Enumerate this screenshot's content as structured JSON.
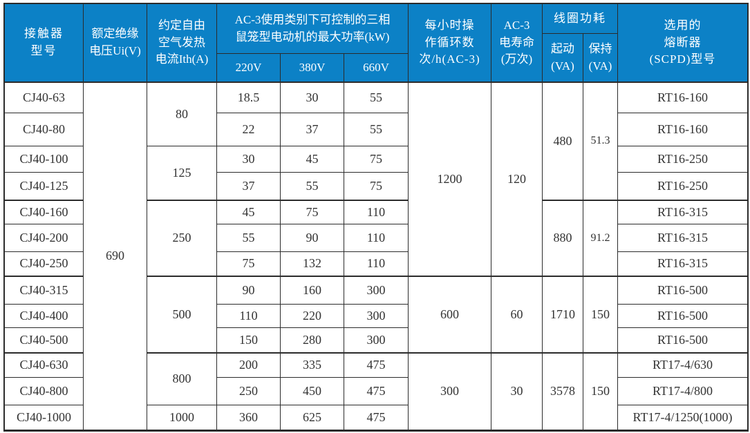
{
  "colors": {
    "header_bg": "#0c81c6",
    "header_text": "#ffffff",
    "border": "#2b2b2b",
    "body_text": "#333333"
  },
  "header": {
    "model": "接触器\n型号",
    "ui": "额定绝缘\n电压Ui(V)",
    "ith": "约定自由\n空气发热\n电流Ith(A)",
    "kw_title": "AC-3使用类别下可控制的三相\n鼠笼型电动机的最大功率(kW)",
    "v220": "220V",
    "v380": "380V",
    "v660": "660V",
    "cycles": "每小时操\n作循环数\n次/h(AC-3)",
    "life": "AC-3\n电寿命\n(万次)",
    "coil": "线圈功耗",
    "start": "起动\n(VA)",
    "hold": "保持\n(VA)",
    "fuse": "选用的\n熔断器\n(SCPD)型号"
  },
  "merged": {
    "ui": "690",
    "ith": [
      "80",
      "125",
      "250",
      "500",
      "800",
      "1000"
    ],
    "cycles": [
      "1200",
      "600",
      "300"
    ],
    "life": [
      "120",
      "60",
      "30"
    ],
    "start": [
      "480",
      "880",
      "1710",
      "3578"
    ],
    "hold": [
      "51.3",
      "91.2",
      "150",
      "150"
    ]
  },
  "rows": [
    {
      "model": "CJ40-63",
      "p220": "18.5",
      "p380": "30",
      "p660": "55",
      "fuse": "RT16-160"
    },
    {
      "model": "CJ40-80",
      "p220": "22",
      "p380": "37",
      "p660": "55",
      "fuse": "RT16-160"
    },
    {
      "model": "CJ40-100",
      "p220": "30",
      "p380": "45",
      "p660": "75",
      "fuse": "RT16-250"
    },
    {
      "model": "CJ40-125",
      "p220": "37",
      "p380": "55",
      "p660": "75",
      "fuse": "RT16-250"
    },
    {
      "model": "CJ40-160",
      "p220": "45",
      "p380": "75",
      "p660": "110",
      "fuse": "RT16-315"
    },
    {
      "model": "CJ40-200",
      "p220": "55",
      "p380": "90",
      "p660": "110",
      "fuse": "RT16-315"
    },
    {
      "model": "CJ40-250",
      "p220": "75",
      "p380": "132",
      "p660": "110",
      "fuse": "RT16-315"
    },
    {
      "model": "CJ40-315",
      "p220": "90",
      "p380": "160",
      "p660": "300",
      "fuse": "RT16-500"
    },
    {
      "model": "CJ40-400",
      "p220": "110",
      "p380": "220",
      "p660": "300",
      "fuse": "RT16-500"
    },
    {
      "model": "CJ40-500",
      "p220": "150",
      "p380": "280",
      "p660": "300",
      "fuse": "RT16-500"
    },
    {
      "model": "CJ40-630",
      "p220": "200",
      "p380": "335",
      "p660": "475",
      "fuse": "RT17-4/630"
    },
    {
      "model": "CJ40-800",
      "p220": "250",
      "p380": "450",
      "p660": "475",
      "fuse": "RT17-4/800"
    },
    {
      "model": "CJ40-1000",
      "p220": "360",
      "p380": "625",
      "p660": "475",
      "fuse": "RT17-4/1250(1000)"
    }
  ]
}
